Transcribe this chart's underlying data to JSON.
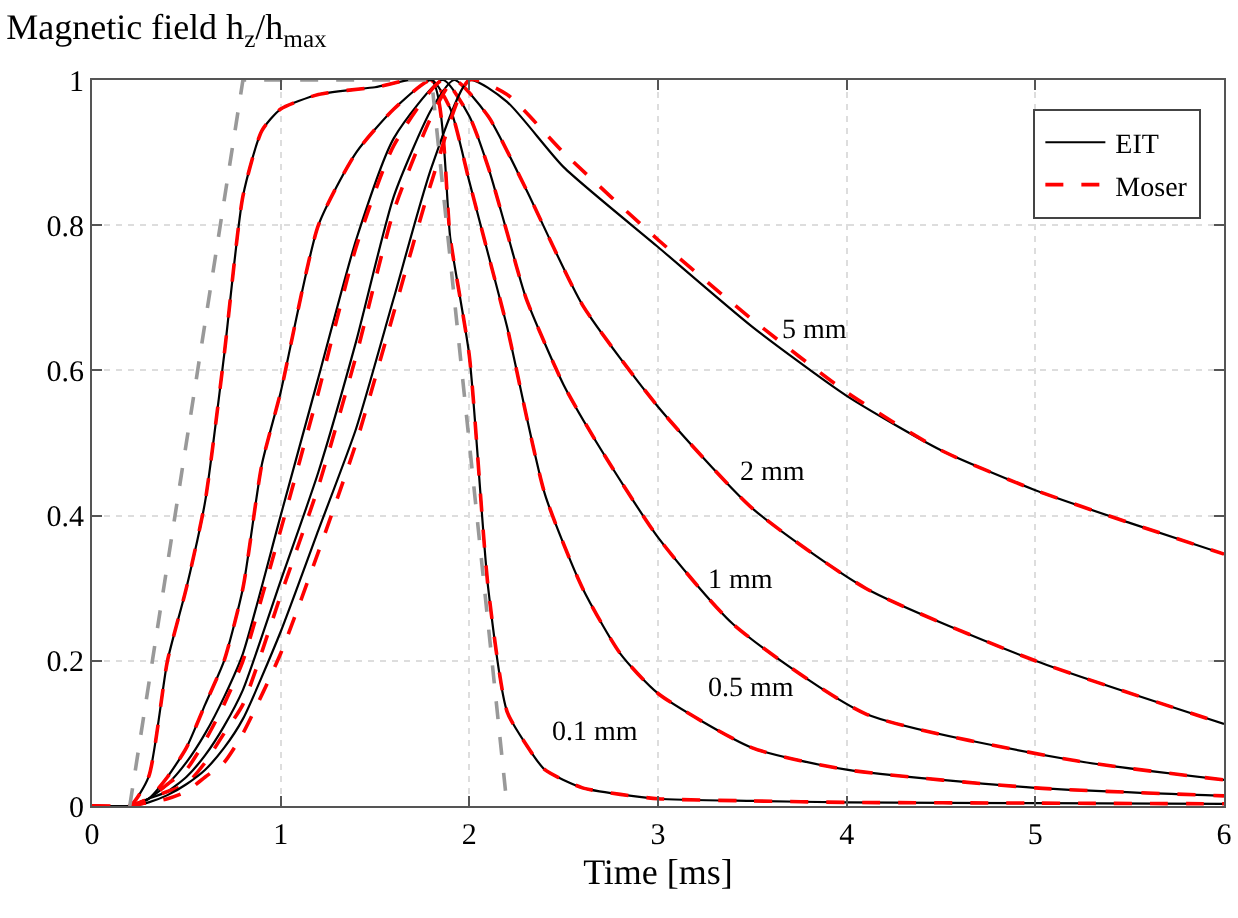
{
  "chart_data": {
    "type": "line",
    "title": "Magnetic field h$_{z}$/h$_{max}$",
    "xlabel": "Time [ms]",
    "xlim": [
      0,
      6
    ],
    "xticks": [
      0,
      1,
      2,
      3,
      4,
      5,
      6
    ],
    "ylim": [
      0,
      1
    ],
    "yticks": [
      0,
      0.2,
      0.4,
      0.6,
      0.8,
      1
    ],
    "grid": true,
    "legend": "top right",
    "series": [
      {
        "name": "EIT",
        "color": "#000000",
        "line_style": "solid",
        "x": [
          0,
          0.2,
          0.3,
          0.4,
          0.5,
          0.6,
          0.7,
          0.8,
          0.9,
          1.0,
          1.2,
          1.5,
          1.8,
          1.9,
          2.0,
          2.1,
          2.2,
          2.3,
          2.4,
          2.6,
          2.8,
          3.0,
          3.5,
          4,
          5,
          6
        ],
        "values": [
          0,
          0,
          0.04,
          0.2,
          0.3,
          0.42,
          0.62,
          0.84,
          0.93,
          0.96,
          0.98,
          0.99,
          1.0,
          0.78,
          0.62,
          0.3,
          0.13,
          0.085,
          0.05,
          0.025,
          0.016,
          0.01,
          0.007,
          0.005,
          0.004,
          0.003
        ]
      },
      {
        "name": "Moser",
        "color": "#ff0000",
        "line_style": "dashed",
        "x": [
          0,
          0.2,
          0.3,
          0.4,
          0.5,
          0.6,
          0.7,
          0.8,
          0.9,
          1.0,
          1.2,
          1.5,
          1.8,
          1.9,
          2.0,
          2.1,
          2.2,
          2.3,
          2.4,
          2.6,
          2.8,
          3.0,
          3.5,
          4,
          5,
          6
        ],
        "values": [
          0,
          0,
          0.04,
          0.2,
          0.3,
          0.42,
          0.62,
          0.84,
          0.93,
          0.96,
          0.98,
          0.99,
          1.0,
          0.78,
          0.62,
          0.3,
          0.13,
          0.085,
          0.05,
          0.025,
          0.016,
          0.01,
          0.007,
          0.005,
          0.004,
          0.003
        ]
      },
      {
        "color": "#000000",
        "line_style": "solid",
        "x": [
          0,
          0.2,
          0.3,
          0.4,
          0.5,
          0.6,
          0.7,
          0.8,
          0.9,
          1.0,
          1.2,
          1.4,
          1.6,
          1.8,
          1.9,
          2.0,
          2.1,
          2.2,
          2.4,
          2.6,
          2.8,
          3.0,
          3.5,
          4,
          5,
          6
        ],
        "values": [
          0,
          0,
          0.01,
          0.04,
          0.08,
          0.14,
          0.2,
          0.3,
          0.47,
          0.57,
          0.8,
          0.9,
          0.96,
          1.0,
          0.96,
          0.86,
          0.76,
          0.66,
          0.43,
          0.3,
          0.21,
          0.155,
          0.08,
          0.05,
          0.025,
          0.014
        ]
      },
      {
        "color": "#ff0000",
        "line_style": "dashed",
        "x": [
          0,
          0.2,
          0.3,
          0.4,
          0.5,
          0.6,
          0.7,
          0.8,
          0.9,
          1.0,
          1.2,
          1.4,
          1.6,
          1.8,
          1.9,
          2.0,
          2.1,
          2.2,
          2.4,
          2.6,
          2.8,
          3.0,
          3.5,
          4,
          5,
          6
        ],
        "values": [
          0,
          0,
          0.01,
          0.04,
          0.08,
          0.14,
          0.2,
          0.3,
          0.47,
          0.57,
          0.8,
          0.9,
          0.96,
          1.0,
          0.96,
          0.86,
          0.76,
          0.66,
          0.43,
          0.3,
          0.21,
          0.155,
          0.08,
          0.05,
          0.025,
          0.014
        ]
      },
      {
        "color": "#000000",
        "line_style": "solid",
        "x": [
          0,
          0.2,
          0.3,
          0.4,
          0.5,
          0.6,
          0.7,
          0.8,
          1.0,
          1.2,
          1.4,
          1.6,
          1.86,
          2.0,
          2.1,
          2.2,
          2.3,
          2.5,
          2.7,
          3.0,
          3.4,
          4.1,
          5.2,
          6
        ],
        "values": [
          0,
          0,
          0.01,
          0.03,
          0.06,
          0.1,
          0.15,
          0.21,
          0.4,
          0.59,
          0.78,
          0.92,
          1.0,
          0.95,
          0.88,
          0.79,
          0.7,
          0.58,
          0.49,
          0.37,
          0.25,
          0.127,
          0.063,
          0.036
        ]
      },
      {
        "color": "#ff0000",
        "line_style": "dashed",
        "x": [
          0,
          0.2,
          0.3,
          0.4,
          0.5,
          0.6,
          0.7,
          0.8,
          1.0,
          1.2,
          1.4,
          1.6,
          1.86,
          2.0,
          2.1,
          2.2,
          2.3,
          2.5,
          2.7,
          3.0,
          3.4,
          4.1,
          5.2,
          6
        ],
        "values": [
          0,
          0,
          0.01,
          0.03,
          0.05,
          0.09,
          0.14,
          0.2,
          0.38,
          0.57,
          0.77,
          0.91,
          1.0,
          0.95,
          0.88,
          0.79,
          0.7,
          0.58,
          0.49,
          0.37,
          0.25,
          0.127,
          0.063,
          0.036
        ]
      },
      {
        "color": "#000000",
        "line_style": "solid",
        "x": [
          0,
          0.2,
          0.3,
          0.4,
          0.5,
          0.6,
          0.7,
          0.8,
          1.0,
          1.2,
          1.4,
          1.6,
          1.8,
          1.92,
          2.1,
          2.3,
          2.6,
          3.0,
          3.5,
          4.1,
          5,
          6
        ],
        "values": [
          0,
          0,
          0.01,
          0.02,
          0.04,
          0.07,
          0.11,
          0.16,
          0.31,
          0.46,
          0.64,
          0.84,
          0.96,
          1.0,
          0.95,
          0.85,
          0.69,
          0.55,
          0.41,
          0.3,
          0.2,
          0.113
        ]
      },
      {
        "color": "#ff0000",
        "line_style": "dashed",
        "x": [
          0,
          0.2,
          0.3,
          0.4,
          0.5,
          0.6,
          0.7,
          0.8,
          1.0,
          1.2,
          1.4,
          1.6,
          1.8,
          1.92,
          2.1,
          2.3,
          2.6,
          3.0,
          3.5,
          4.1,
          5,
          6
        ],
        "values": [
          0,
          0,
          0.01,
          0.02,
          0.03,
          0.06,
          0.1,
          0.14,
          0.29,
          0.44,
          0.62,
          0.82,
          0.95,
          1.0,
          0.95,
          0.85,
          0.69,
          0.55,
          0.41,
          0.3,
          0.2,
          0.113
        ]
      },
      {
        "color": "#000000",
        "line_style": "solid",
        "x": [
          0,
          0.2,
          0.3,
          0.4,
          0.5,
          0.6,
          0.7,
          0.8,
          1.0,
          1.2,
          1.4,
          1.6,
          1.8,
          2.0,
          2.2,
          2.5,
          3,
          3.5,
          4,
          4.5,
          5,
          5.5,
          6
        ],
        "values": [
          0,
          0,
          0.005,
          0.015,
          0.03,
          0.05,
          0.08,
          0.12,
          0.24,
          0.38,
          0.52,
          0.7,
          0.88,
          1.0,
          0.97,
          0.88,
          0.77,
          0.66,
          0.565,
          0.49,
          0.435,
          0.39,
          0.347
        ]
      },
      {
        "color": "#ff0000",
        "line_style": "dashed",
        "x": [
          0,
          0.2,
          0.3,
          0.4,
          0.5,
          0.6,
          0.7,
          0.8,
          1.0,
          1.2,
          1.4,
          1.6,
          1.8,
          2.0,
          2.2,
          2.5,
          3,
          3.5,
          4,
          4.5,
          5,
          5.5,
          6
        ],
        "values": [
          0,
          0,
          0.005,
          0.01,
          0.02,
          0.04,
          0.06,
          0.1,
          0.21,
          0.35,
          0.5,
          0.68,
          0.86,
          1.0,
          0.98,
          0.9,
          0.78,
          0.67,
          0.57,
          0.49,
          0.435,
          0.39,
          0.347
        ]
      },
      {
        "color": "#999999",
        "line_style": "dashed",
        "x": [
          0.2,
          0.8,
          1.8,
          2.2
        ],
        "values": [
          0,
          1,
          1,
          0
        ]
      }
    ],
    "annotations": [
      "5 mm",
      "2 mm",
      "1 mm",
      "0.5 mm",
      "0.1 mm"
    ]
  }
}
